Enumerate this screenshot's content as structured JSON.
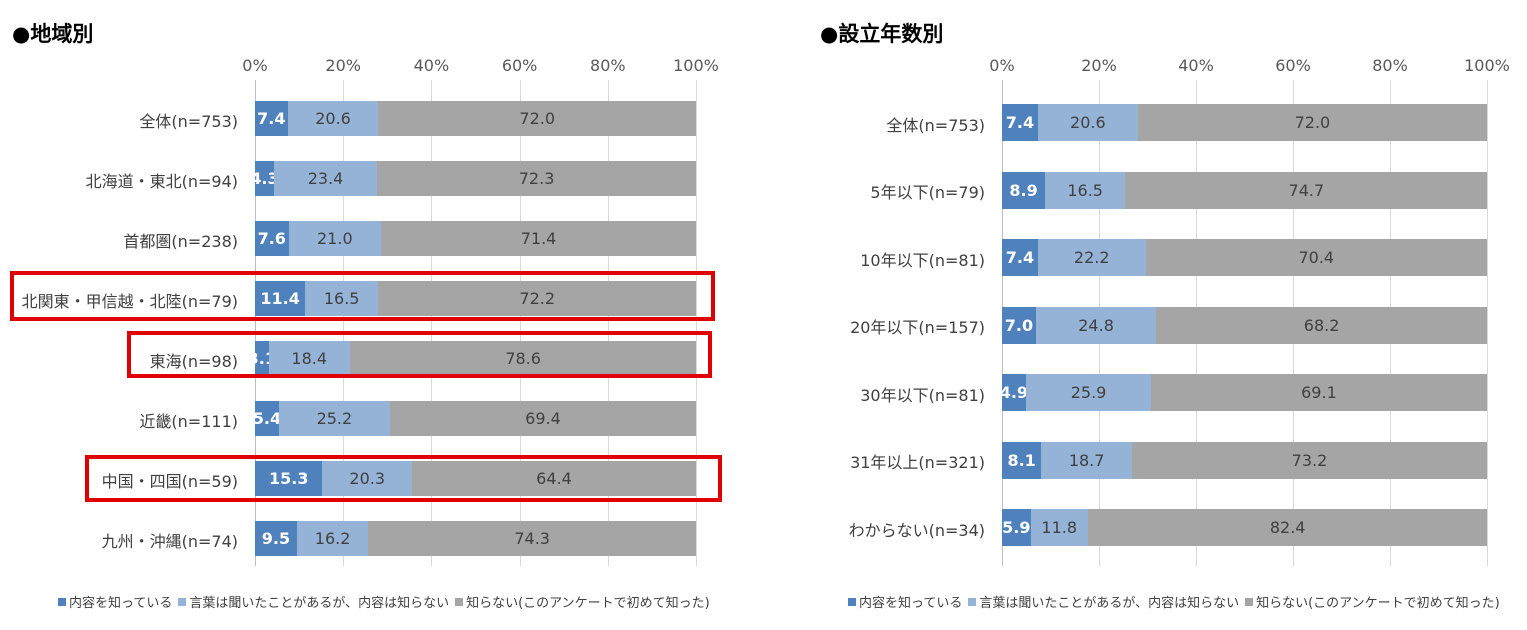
{
  "colors": {
    "s0": "#4f81bd",
    "s1": "#95b3d7",
    "s2": "#a5a5a5",
    "highlight": "#e00000"
  },
  "legend": [
    {
      "label": "内容を知っている",
      "key": "s0"
    },
    {
      "label": "言葉は聞いたことがあるが、内容は知らない",
      "key": "s1"
    },
    {
      "label": "知らない(このアンケートで初めて知った)",
      "key": "s2"
    }
  ],
  "chart_data": [
    {
      "type": "bar",
      "orientation": "horizontal",
      "stacked": true,
      "title": "●地域別",
      "xlim": [
        0,
        100
      ],
      "ticks": [
        "0%",
        "20%",
        "40%",
        "60%",
        "80%",
        "100%"
      ],
      "categories": [
        "全体(n=753)",
        "北海道・東北(n=94)",
        "首都圏(n=238)",
        "北関東・甲信越・北陸(n=79)",
        "東海(n=98)",
        "近畿(n=111)",
        "中国・四国(n=59)",
        "九州・沖縄(n=74)"
      ],
      "highlighted": [
        "北関東・甲信越・北陸(n=79)",
        "東海(n=98)",
        "中国・四国(n=59)"
      ],
      "series": [
        {
          "name": "内容を知っている",
          "values": [
            7.4,
            4.3,
            7.6,
            11.4,
            3.1,
            5.4,
            15.3,
            9.5
          ]
        },
        {
          "name": "言葉は聞いたことがあるが、内容は知らない",
          "values": [
            20.6,
            23.4,
            21.0,
            16.5,
            18.4,
            25.2,
            20.3,
            16.2
          ]
        },
        {
          "name": "知らない(このアンケートで初めて知った)",
          "values": [
            72.0,
            72.3,
            71.4,
            72.2,
            78.6,
            69.4,
            64.4,
            74.3
          ]
        }
      ]
    },
    {
      "type": "bar",
      "orientation": "horizontal",
      "stacked": true,
      "title": "●設立年数別",
      "xlim": [
        0,
        100
      ],
      "ticks": [
        "0%",
        "20%",
        "40%",
        "60%",
        "80%",
        "100%"
      ],
      "categories": [
        "全体(n=753)",
        "5年以下(n=79)",
        "10年以下(n=81)",
        "20年以下(n=157)",
        "30年以下(n=81)",
        "31年以上(n=321)",
        "わからない(n=34)"
      ],
      "highlighted": [],
      "series": [
        {
          "name": "内容を知っている",
          "values": [
            7.4,
            8.9,
            7.4,
            7.0,
            4.9,
            8.1,
            5.9
          ]
        },
        {
          "name": "言葉は聞いたことがあるが、内容は知らない",
          "values": [
            20.6,
            16.5,
            22.2,
            24.8,
            25.9,
            18.7,
            11.8
          ]
        },
        {
          "name": "知らない(このアンケートで初めて知った)",
          "values": [
            72.0,
            74.7,
            70.4,
            68.2,
            69.1,
            73.2,
            82.4
          ]
        }
      ]
    }
  ]
}
